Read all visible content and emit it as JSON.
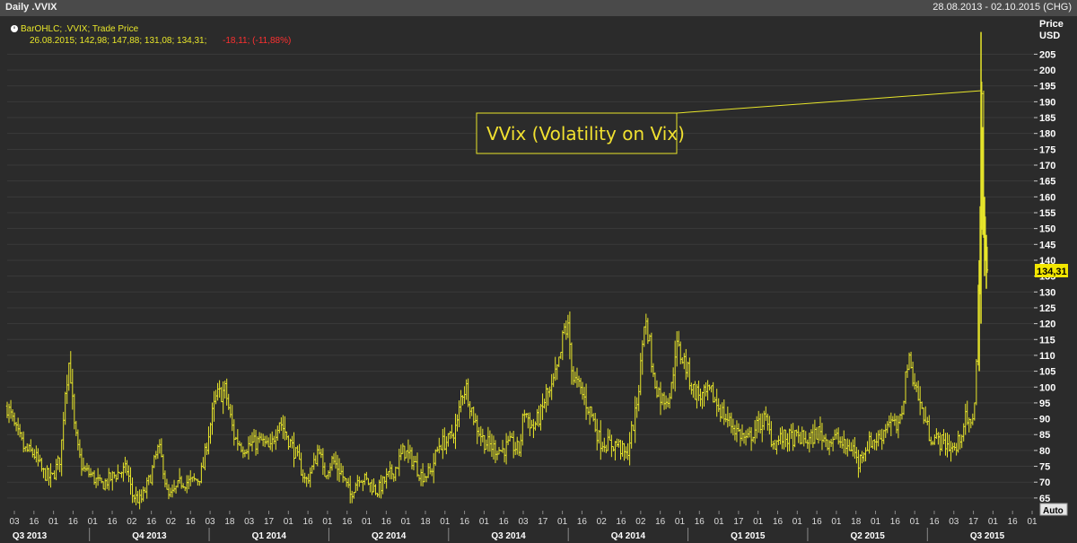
{
  "window": {
    "title": "Daily .VVIX",
    "date_range": "28.08.2013 - 02.10.2015 (CHG)"
  },
  "legend": {
    "series_line": "BarOHLC; .VVIX; Trade Price",
    "ohlc_line": "26.08.2015; 142,98; 147,88; 131,08; 134,31;",
    "change_line": "-18,11; (-11,88%)"
  },
  "axis": {
    "price_label": "Price",
    "currency_label": "USD",
    "auto_button": "Auto",
    "last_price_label": "134,31"
  },
  "annotation": {
    "text": "VVix (Volatility on Vix)"
  },
  "colors": {
    "background": "#2b2b2b",
    "series": "#e8e62a",
    "grid": "#3a3a3a",
    "change_negative": "#ff3030"
  },
  "chart_data": {
    "type": "bar",
    "subtype": "ohlc",
    "series_name": ".VVIX",
    "ylim": [
      61,
      217
    ],
    "yticks": [
      65,
      70,
      75,
      80,
      85,
      90,
      95,
      100,
      105,
      110,
      115,
      120,
      125,
      130,
      135,
      140,
      145,
      150,
      155,
      160,
      165,
      170,
      175,
      180,
      185,
      190,
      195,
      200,
      205
    ],
    "y_tick_labels": [
      "65",
      "70",
      "75",
      "80",
      "85",
      "90",
      "95",
      "100",
      "105",
      "110",
      "115",
      "120",
      "125",
      "130",
      "135",
      "140",
      "145",
      "150",
      "155",
      "160",
      "165",
      "170",
      "175",
      "180",
      "185",
      "190",
      "195",
      "200",
      "205"
    ],
    "x_tick_labels": [
      "03",
      "16",
      "01",
      "16",
      "01",
      "16",
      "02",
      "16",
      "02",
      "16",
      "03",
      "18",
      "03",
      "17",
      "01",
      "16",
      "01",
      "16",
      "01",
      "16",
      "01",
      "18",
      "01",
      "16",
      "01",
      "16",
      "03",
      "17",
      "01",
      "16",
      "02",
      "16",
      "02",
      "16",
      "01",
      "16",
      "01",
      "17",
      "01",
      "16",
      "01",
      "16",
      "01",
      "18",
      "01",
      "16",
      "01",
      "16",
      "03",
      "17",
      "01",
      "16",
      "01"
    ],
    "quarter_labels": [
      "Q3 2013",
      "Q4 2013",
      "Q1 2014",
      "Q2 2014",
      "Q3 2014",
      "Q4 2014",
      "Q1 2015",
      "Q2 2015",
      "Q3 2015"
    ],
    "points": [
      [
        0,
        94
      ],
      [
        10,
        86
      ],
      [
        20,
        80
      ],
      [
        30,
        79
      ],
      [
        40,
        73
      ],
      [
        50,
        71
      ],
      [
        60,
        78
      ],
      [
        65,
        99
      ],
      [
        70,
        109
      ],
      [
        75,
        88
      ],
      [
        80,
        79
      ],
      [
        85,
        74
      ],
      [
        95,
        72
      ],
      [
        105,
        69
      ],
      [
        115,
        71
      ],
      [
        125,
        73
      ],
      [
        135,
        74
      ],
      [
        140,
        66
      ],
      [
        150,
        64
      ],
      [
        160,
        71
      ],
      [
        170,
        81
      ],
      [
        175,
        75
      ],
      [
        180,
        65
      ],
      [
        185,
        66
      ],
      [
        195,
        70
      ],
      [
        205,
        70
      ],
      [
        215,
        71
      ],
      [
        220,
        75
      ],
      [
        225,
        84
      ],
      [
        230,
        91
      ],
      [
        235,
        97
      ],
      [
        245,
        99
      ],
      [
        250,
        91
      ],
      [
        255,
        84
      ],
      [
        265,
        81
      ],
      [
        275,
        82
      ],
      [
        285,
        83
      ],
      [
        295,
        80
      ],
      [
        305,
        90
      ],
      [
        315,
        84
      ],
      [
        325,
        78
      ],
      [
        335,
        70
      ],
      [
        345,
        76
      ],
      [
        350,
        82
      ],
      [
        355,
        72
      ],
      [
        365,
        77
      ],
      [
        375,
        73
      ],
      [
        385,
        66
      ],
      [
        395,
        72
      ],
      [
        405,
        70
      ],
      [
        415,
        67
      ],
      [
        425,
        71
      ],
      [
        435,
        74
      ],
      [
        445,
        80
      ],
      [
        455,
        77
      ],
      [
        465,
        72
      ],
      [
        475,
        73
      ],
      [
        485,
        82
      ],
      [
        495,
        83
      ],
      [
        505,
        88
      ],
      [
        510,
        98
      ],
      [
        515,
        100
      ],
      [
        525,
        89
      ],
      [
        535,
        83
      ],
      [
        545,
        81
      ],
      [
        555,
        80
      ],
      [
        565,
        82
      ],
      [
        575,
        80
      ],
      [
        580,
        93
      ],
      [
        590,
        87
      ],
      [
        600,
        92
      ],
      [
        605,
        98
      ],
      [
        610,
        98
      ],
      [
        615,
        103
      ],
      [
        620,
        108
      ],
      [
        625,
        118
      ],
      [
        630,
        118
      ],
      [
        635,
        103
      ],
      [
        645,
        98
      ],
      [
        655,
        92
      ],
      [
        665,
        83
      ],
      [
        675,
        82
      ],
      [
        685,
        82
      ],
      [
        695,
        78
      ],
      [
        700,
        85
      ],
      [
        705,
        91
      ],
      [
        710,
        103
      ],
      [
        715,
        121
      ],
      [
        720,
        117
      ],
      [
        725,
        103
      ],
      [
        735,
        96
      ],
      [
        745,
        98
      ],
      [
        750,
        113
      ],
      [
        760,
        108
      ],
      [
        770,
        99
      ],
      [
        780,
        97
      ],
      [
        790,
        98
      ],
      [
        800,
        93
      ],
      [
        810,
        89
      ],
      [
        820,
        86
      ],
      [
        830,
        83
      ],
      [
        840,
        87
      ],
      [
        850,
        90
      ],
      [
        860,
        82
      ],
      [
        870,
        84
      ],
      [
        880,
        84
      ],
      [
        890,
        84
      ],
      [
        900,
        83
      ],
      [
        910,
        86
      ],
      [
        920,
        83
      ],
      [
        930,
        84
      ],
      [
        940,
        81
      ],
      [
        950,
        81
      ],
      [
        955,
        75
      ],
      [
        960,
        80
      ],
      [
        970,
        83
      ],
      [
        980,
        84
      ],
      [
        990,
        90
      ],
      [
        1000,
        86
      ],
      [
        1005,
        94
      ],
      [
        1010,
        108
      ],
      [
        1015,
        106
      ],
      [
        1025,
        94
      ],
      [
        1035,
        85
      ],
      [
        1045,
        83
      ],
      [
        1055,
        82
      ],
      [
        1065,
        80
      ],
      [
        1075,
        90
      ],
      [
        1082,
        87
      ],
      [
        1087,
        100
      ],
      [
        1091,
        140
      ],
      [
        1093,
        175
      ],
      [
        1094,
        195
      ],
      [
        1096,
        148
      ],
      [
        1098,
        140
      ],
      [
        1100,
        134
      ]
    ]
  }
}
